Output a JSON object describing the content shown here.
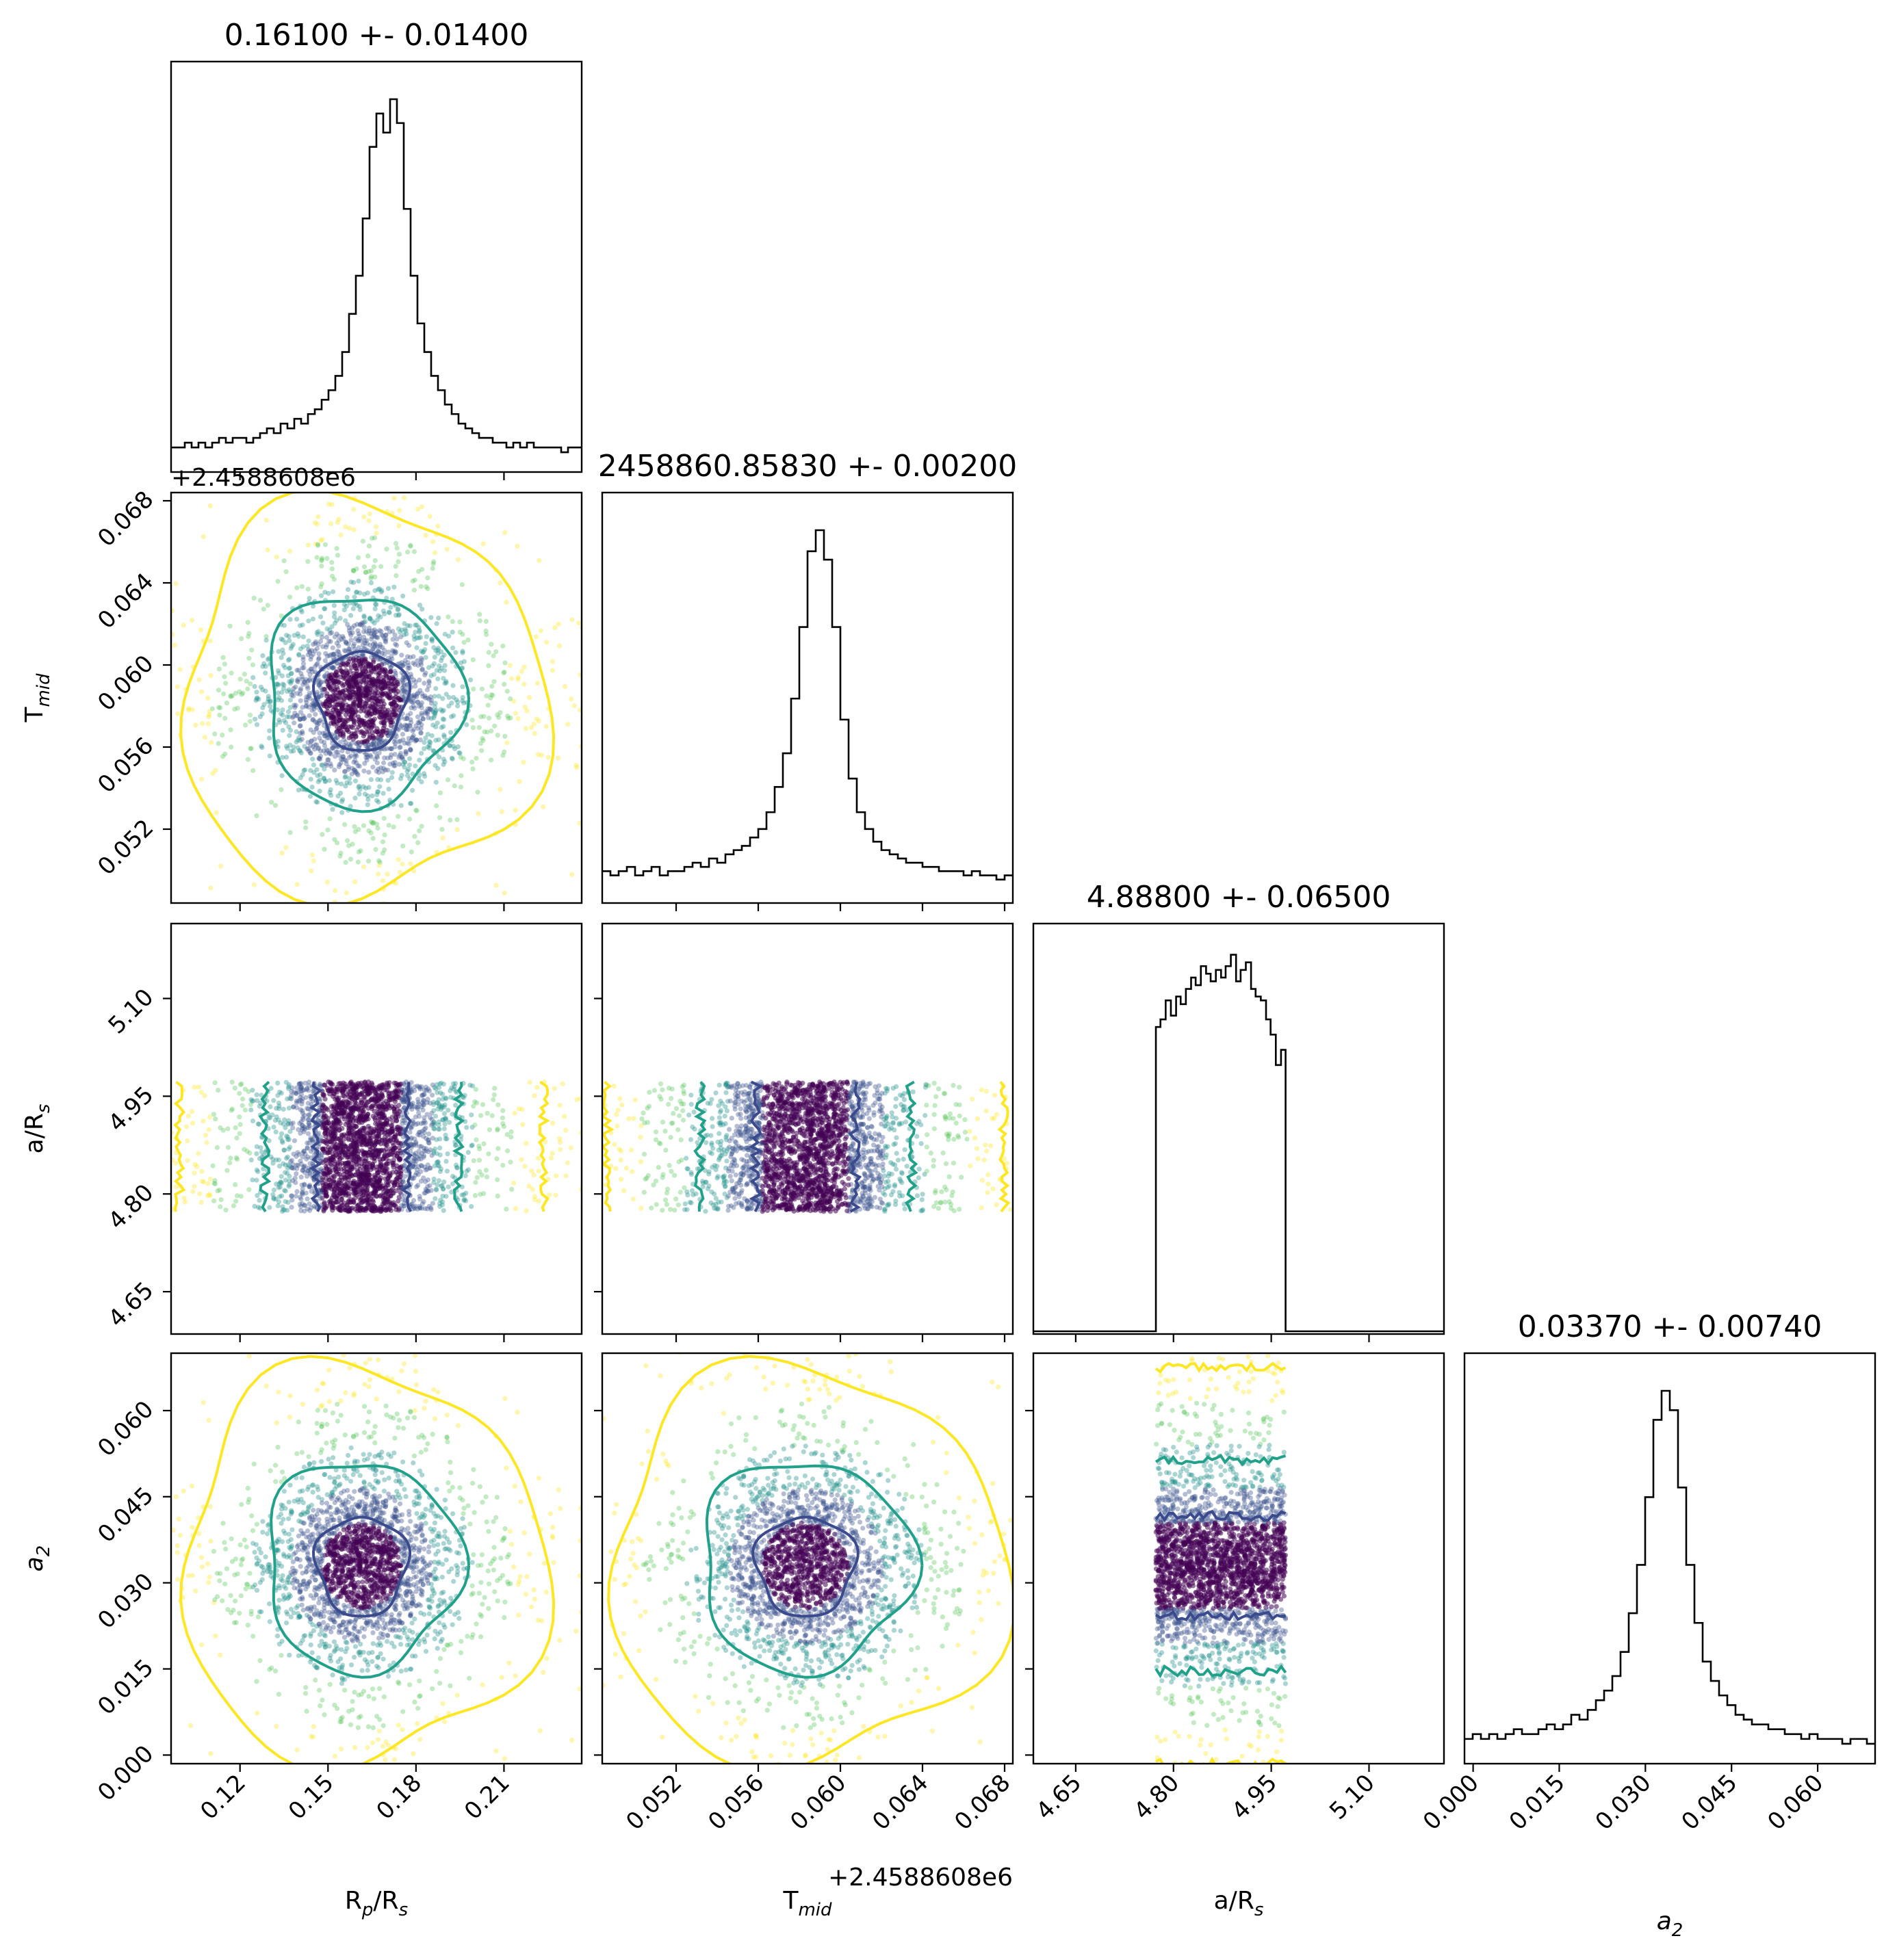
{
  "chart_data": {
    "type": "corner",
    "parameters": [
      {
        "key": "rp",
        "label_main": "R",
        "label_sub": "p",
        "label_rest": "/R",
        "label_sub2": "s",
        "range": [
          0.0965,
          0.2365
        ],
        "ticks": [
          "0.12",
          "0.15",
          "0.18",
          "0.21"
        ],
        "tick_values": [
          0.12,
          0.15,
          0.18,
          0.21
        ],
        "title": "0.16100 +- 0.01400"
      },
      {
        "key": "tmid",
        "label_main": "T",
        "label_sub": "mid",
        "label_rest": "",
        "label_sub2": "",
        "range": [
          0.0484,
          0.0684
        ],
        "ticks": [
          "0.052",
          "0.056",
          "0.060",
          "0.064",
          "0.068"
        ],
        "tick_values": [
          0.052,
          0.056,
          0.06,
          0.064,
          0.068
        ],
        "offset": "+2.4588608e6",
        "title": "2458860.85830 +- 0.00200"
      },
      {
        "key": "ars",
        "label_main": "a/R",
        "label_sub": "s",
        "label_rest": "",
        "label_sub2": "",
        "range": [
          4.585,
          5.215
        ],
        "ticks": [
          "4.65",
          "4.80",
          "4.95",
          "5.10"
        ],
        "tick_values": [
          4.65,
          4.8,
          4.95,
          5.1
        ],
        "title": "4.88800 +- 0.06500"
      },
      {
        "key": "a2",
        "label_main": "a",
        "label_sub": "2",
        "label_rest": "",
        "label_sub2": "",
        "italic": true,
        "range": [
          -0.0015,
          0.07
        ],
        "ticks": [
          "0.000",
          "0.015",
          "0.030",
          "0.045",
          "0.060"
        ],
        "tick_values": [
          0.0,
          0.015,
          0.03,
          0.045,
          0.06
        ],
        "title": "0.03370 +- 0.00740"
      }
    ],
    "histograms": [
      {
        "param": "rp",
        "bin_range": [
          0.0965,
          0.2365
        ],
        "counts": [
          2,
          2,
          3,
          2,
          3,
          2,
          3,
          4,
          3,
          4,
          4,
          3,
          4,
          5,
          6,
          5,
          7,
          6,
          8,
          7,
          9,
          10,
          12,
          14,
          17,
          22,
          30,
          38,
          50,
          65,
          72,
          68,
          75,
          70,
          52,
          38,
          28,
          22,
          17,
          14,
          11,
          9,
          7,
          6,
          5,
          4,
          4,
          3,
          3,
          2,
          3,
          2,
          3,
          2,
          2,
          2,
          2,
          1,
          2,
          2
        ]
      },
      {
        "param": "tmid",
        "bin_range": [
          0.0484,
          0.0684
        ],
        "counts": [
          4,
          3,
          4,
          5,
          3,
          4,
          5,
          3,
          4,
          4,
          5,
          6,
          5,
          7,
          6,
          8,
          9,
          10,
          12,
          14,
          18,
          24,
          32,
          45,
          62,
          80,
          85,
          78,
          62,
          40,
          26,
          18,
          14,
          11,
          9,
          8,
          7,
          6,
          6,
          5,
          5,
          4,
          4,
          4,
          3,
          4,
          3,
          3,
          2,
          3
        ]
      },
      {
        "param": "ars",
        "bin_range": [
          4.585,
          5.215
        ],
        "counts": [
          0,
          0,
          0,
          0,
          0,
          0,
          0,
          0,
          0,
          0,
          0,
          0,
          0,
          0,
          0,
          0,
          0,
          0,
          0,
          0,
          0,
          0,
          0,
          0,
          0,
          0,
          0,
          0,
          0,
          0,
          0,
          0,
          0,
          0,
          0,
          0,
          0,
          0,
          0,
          0,
          0,
          0,
          0,
          0,
          0,
          0,
          0,
          0,
          0,
          0,
          0,
          0,
          0,
          0,
          0,
          0,
          0,
          0,
          0,
          0,
          0,
          0,
          0,
          0,
          0,
          0,
          0,
          0,
          0,
          0,
          0,
          0,
          0,
          0,
          0,
          0,
          0,
          0,
          0,
          0
        ]
      },
      {
        "param": "a2",
        "bin_range": [
          -0.0015,
          0.07
        ],
        "counts": [
          2,
          3,
          2,
          3,
          2,
          3,
          4,
          3,
          3,
          4,
          5,
          4,
          5,
          7,
          6,
          8,
          10,
          12,
          15,
          20,
          28,
          38,
          52,
          68,
          74,
          70,
          54,
          38,
          26,
          18,
          14,
          11,
          9,
          7,
          6,
          5,
          5,
          4,
          4,
          3,
          3,
          2,
          3,
          2,
          2,
          2,
          1,
          2,
          2,
          1
        ]
      }
    ],
    "ars_hist_rows": [
      {
        "x": 4.773,
        "y": 0.0
      },
      {
        "x": 4.773,
        "y": 0.8
      },
      {
        "x": 4.78,
        "y": 0.82
      },
      {
        "x": 4.788,
        "y": 0.87
      },
      {
        "x": 4.796,
        "y": 0.83
      },
      {
        "x": 4.804,
        "y": 0.88
      },
      {
        "x": 4.811,
        "y": 0.86
      },
      {
        "x": 4.819,
        "y": 0.9
      },
      {
        "x": 4.827,
        "y": 0.93
      },
      {
        "x": 4.834,
        "y": 0.91
      },
      {
        "x": 4.842,
        "y": 0.96
      },
      {
        "x": 4.85,
        "y": 0.94
      },
      {
        "x": 4.857,
        "y": 0.92
      },
      {
        "x": 4.865,
        "y": 0.95
      },
      {
        "x": 4.873,
        "y": 0.93
      },
      {
        "x": 4.88,
        "y": 0.96
      },
      {
        "x": 4.888,
        "y": 0.99
      },
      {
        "x": 4.896,
        "y": 0.92
      },
      {
        "x": 4.903,
        "y": 0.95
      },
      {
        "x": 4.911,
        "y": 0.97
      },
      {
        "x": 4.919,
        "y": 0.9
      },
      {
        "x": 4.926,
        "y": 0.88
      },
      {
        "x": 4.934,
        "y": 0.87
      },
      {
        "x": 4.942,
        "y": 0.82
      },
      {
        "x": 4.949,
        "y": 0.78
      },
      {
        "x": 4.957,
        "y": 0.7
      },
      {
        "x": 4.965,
        "y": 0.74
      },
      {
        "x": 4.972,
        "y": 0.0
      }
    ],
    "pairs": [
      {
        "x": "rp",
        "y": "tmid",
        "center": [
          0.1615,
          0.0583
        ],
        "sigma": [
          0.0135,
          0.0021
        ],
        "trunc_y": null
      },
      {
        "x": "rp",
        "y": "ars",
        "center": [
          0.1615,
          4.888
        ],
        "sigma": [
          0.0135,
          0.065
        ],
        "uniform_y": [
          4.773,
          4.972
        ]
      },
      {
        "x": "tmid",
        "y": "ars",
        "center": [
          0.0583,
          4.888
        ],
        "sigma": [
          0.0021,
          0.065
        ],
        "uniform_y": [
          4.773,
          4.972
        ]
      },
      {
        "x": "rp",
        "y": "a2",
        "center": [
          0.1615,
          0.033
        ],
        "sigma": [
          0.0135,
          0.0075
        ],
        "trunc_y": null
      },
      {
        "x": "tmid",
        "y": "a2",
        "center": [
          0.0583,
          0.033
        ],
        "sigma": [
          0.0021,
          0.0075
        ],
        "trunc_y": null
      },
      {
        "x": "ars",
        "y": "a2",
        "center": [
          4.888,
          0.033
        ],
        "sigma": [
          0.065,
          0.0075
        ],
        "uniform_x": [
          4.773,
          4.972
        ]
      }
    ],
    "colors": {
      "level_inner": "#3b4a8c",
      "level_mid": "#21a08a",
      "level_outer": "#fde725",
      "points": [
        "#440154",
        "#3b528b",
        "#21918c",
        "#5ec962",
        "#fde725"
      ],
      "line": "#000000"
    }
  }
}
